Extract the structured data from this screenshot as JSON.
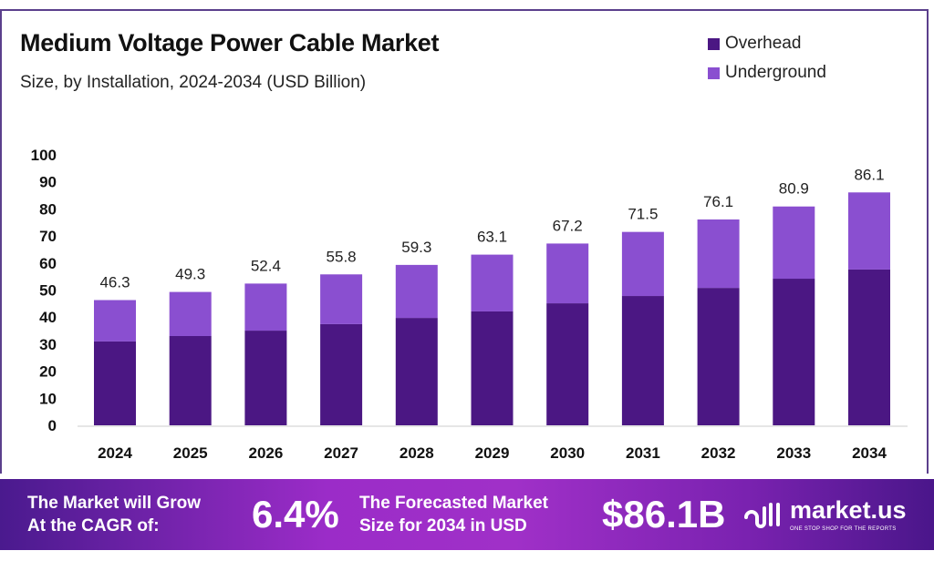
{
  "chart_data": {
    "type": "bar",
    "stacked": true,
    "title": "Medium Voltage Power Cable Market",
    "subtitle": "Size, by Installation, 2024-2034 (USD Billion)",
    "categories": [
      "2024",
      "2025",
      "2026",
      "2027",
      "2028",
      "2029",
      "2030",
      "2031",
      "2032",
      "2033",
      "2034"
    ],
    "series": [
      {
        "name": "Overhead",
        "color": "#4b1783",
        "values": [
          31.0,
          33.0,
          35.0,
          37.4,
          39.7,
          42.1,
          45.1,
          47.8,
          50.8,
          54.2,
          57.6
        ]
      },
      {
        "name": "Underground",
        "color": "#8a4fd0",
        "values": [
          15.3,
          16.3,
          17.4,
          18.4,
          19.6,
          21.0,
          22.1,
          23.7,
          25.3,
          26.7,
          28.5
        ]
      }
    ],
    "totals": [
      "46.3",
      "49.3",
      "52.4",
      "55.8",
      "59.3",
      "63.1",
      "67.2",
      "71.5",
      "76.1",
      "80.9",
      "86.1"
    ],
    "yticks": [
      "0",
      "10",
      "20",
      "30",
      "40",
      "50",
      "60",
      "70",
      "80",
      "90",
      "100"
    ],
    "ylim": [
      0,
      100
    ],
    "grid": false,
    "legend_position": "top-right"
  },
  "footer": {
    "cagr_label_1": "The Market will Grow",
    "cagr_label_2": "At the CAGR of:",
    "cagr_value": "6.4%",
    "forecast_label_1": "The Forecasted Market",
    "forecast_label_2": "Size for 2034 in USD",
    "forecast_value": "$86.1B",
    "logo_text": "market.us",
    "logo_tagline": "ONE STOP SHOP FOR THE REPORTS"
  }
}
